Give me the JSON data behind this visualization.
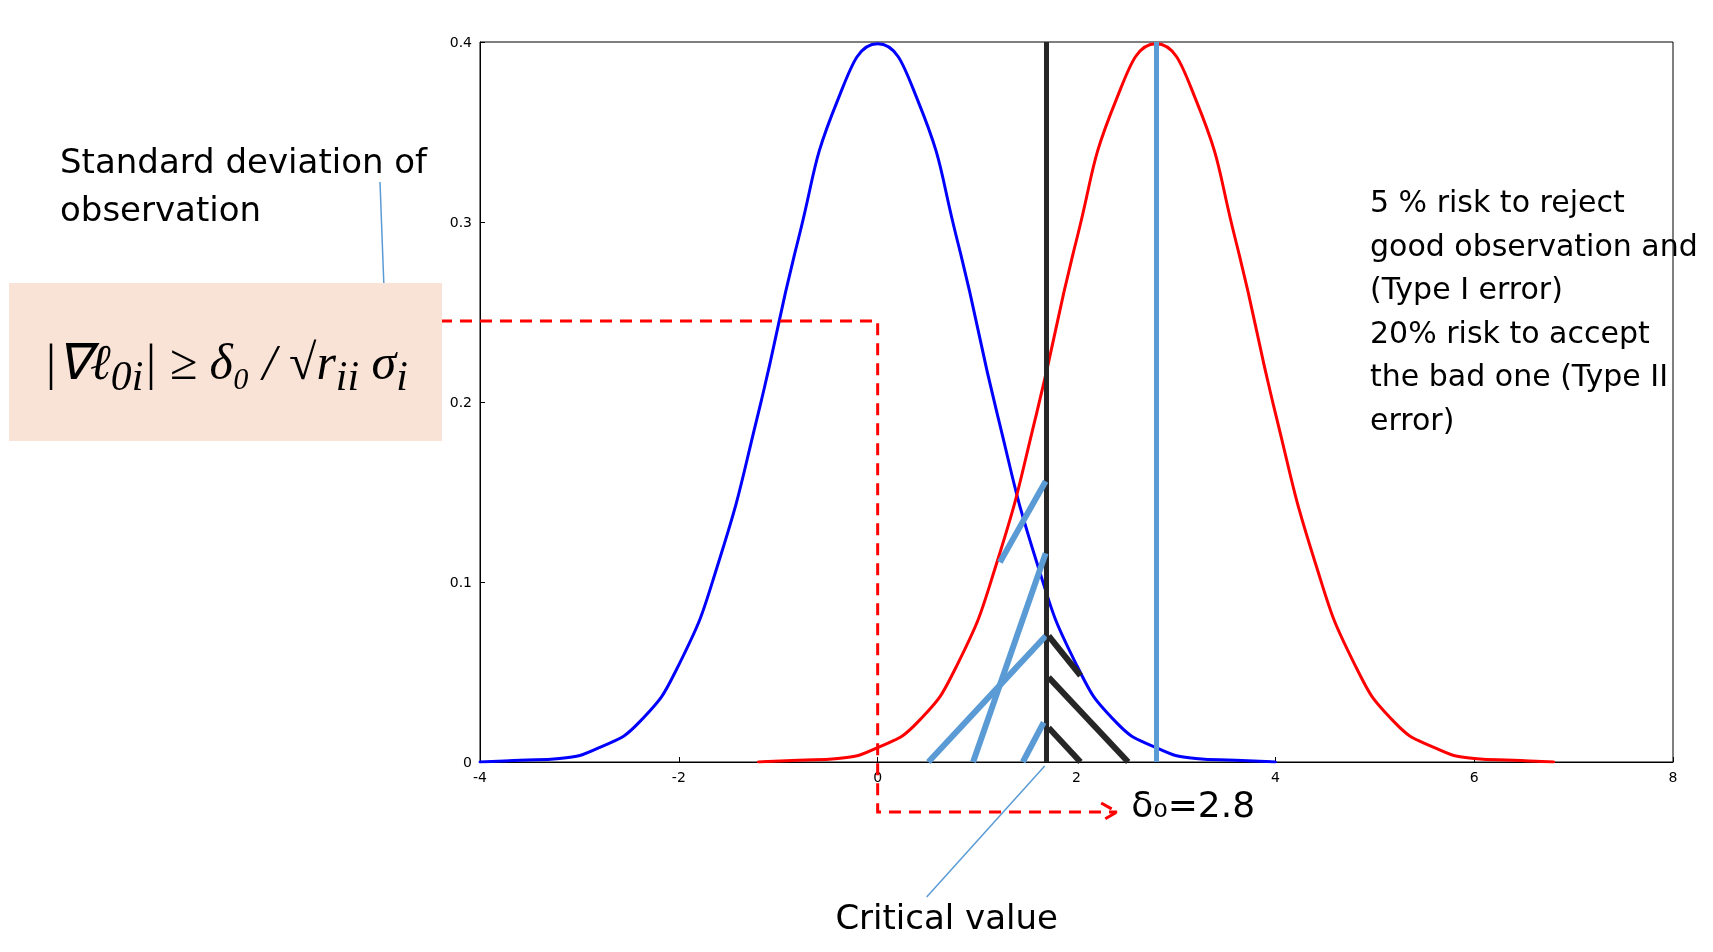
{
  "chart_data": {
    "type": "line",
    "series": [
      {
        "color": "#0000ff",
        "x": [
          -4,
          -3.6,
          -3.2,
          -2.8,
          -2.4,
          -2,
          -1.6,
          -1.2,
          -0.8,
          -0.4,
          0,
          0.4,
          0.8,
          1.2,
          1.6,
          2,
          2.4,
          2.8,
          3.2,
          3.6,
          4
        ],
        "values": [
          0,
          0.001,
          0.002,
          0.008,
          0.022,
          0.054,
          0.111,
          0.194,
          0.29,
          0.368,
          0.399,
          0.368,
          0.29,
          0.194,
          0.111,
          0.054,
          0.022,
          0.008,
          0.002,
          0.001,
          0
        ]
      },
      {
        "color": "#ff0000",
        "x": [
          -1.2,
          -0.8,
          -0.4,
          0,
          0.4,
          0.8,
          1.2,
          1.6,
          2,
          2.4,
          2.8,
          3.2,
          3.6,
          4,
          4.4,
          4.8,
          5.2,
          5.6,
          6,
          6.4,
          6.8
        ],
        "values": [
          0,
          0.001,
          0.002,
          0.008,
          0.022,
          0.054,
          0.111,
          0.194,
          0.29,
          0.368,
          0.399,
          0.368,
          0.29,
          0.194,
          0.111,
          0.054,
          0.022,
          0.008,
          0.002,
          0.001,
          0
        ]
      }
    ],
    "xlim": [
      -4,
      8
    ],
    "xticks": [
      -4,
      -2,
      0,
      2,
      4,
      6,
      8
    ],
    "ylim": [
      0,
      0.4
    ],
    "yticks": [
      0,
      0.1,
      0.2,
      0.3,
      0.4
    ],
    "grid": false,
    "marker": "none",
    "line_style": "solid",
    "ref_lines": [
      {
        "axis": "x",
        "value": 1.7,
        "label": "Critical value",
        "color": "#262626"
      },
      {
        "axis": "x",
        "value": 2.8,
        "label": "δ₀=2.8",
        "color": "#5b9bd5"
      }
    ],
    "annotations": [
      "Standard deviation of observation",
      "|∇ℓ$_{0i}$| ≥ δ₀ / √r$_{ii}$ σ$_{i}$",
      "5 % risk to reject good observation and (Type I error)\n 20% risk to accept the bad one (Type II error)"
    ]
  }
}
